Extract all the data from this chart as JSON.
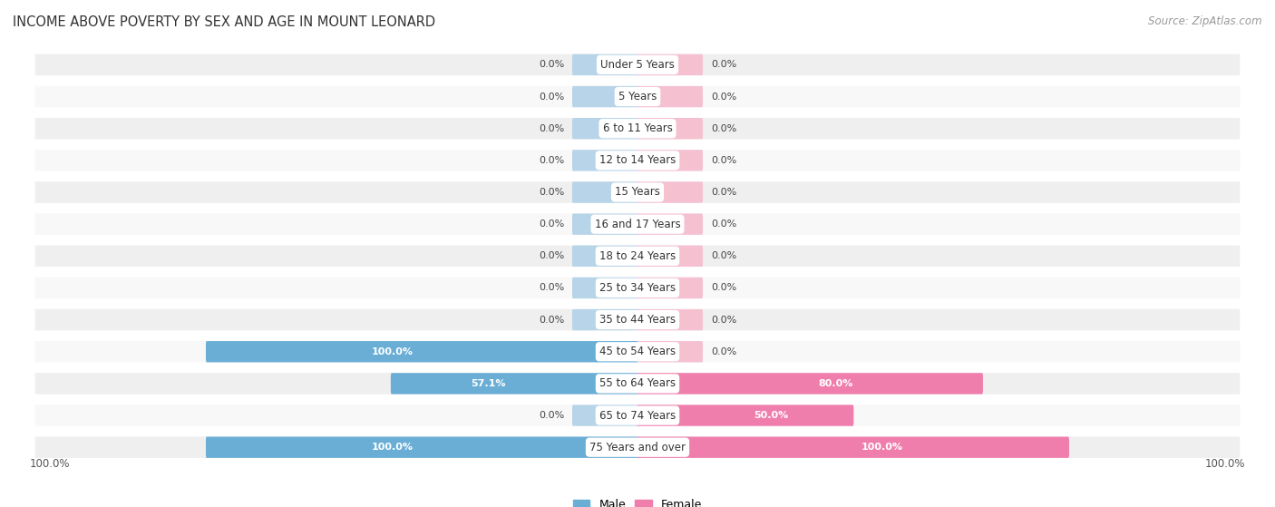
{
  "title": "INCOME ABOVE POVERTY BY SEX AND AGE IN MOUNT LEONARD",
  "source": "Source: ZipAtlas.com",
  "categories": [
    "Under 5 Years",
    "5 Years",
    "6 to 11 Years",
    "12 to 14 Years",
    "15 Years",
    "16 and 17 Years",
    "18 to 24 Years",
    "25 to 34 Years",
    "35 to 44 Years",
    "45 to 54 Years",
    "55 to 64 Years",
    "65 to 74 Years",
    "75 Years and over"
  ],
  "male": [
    0.0,
    0.0,
    0.0,
    0.0,
    0.0,
    0.0,
    0.0,
    0.0,
    0.0,
    100.0,
    57.1,
    0.0,
    100.0
  ],
  "female": [
    0.0,
    0.0,
    0.0,
    0.0,
    0.0,
    0.0,
    0.0,
    0.0,
    0.0,
    0.0,
    80.0,
    50.0,
    100.0
  ],
  "male_color": "#6aaed6",
  "female_color": "#f07ead",
  "male_color_light": "#b8d4e8",
  "female_color_light": "#f5c0d0",
  "bg_odd": "#efefef",
  "bg_even": "#f8f8f8",
  "label_color": "#444444",
  "value_color_dark": "#444444",
  "title_fontsize": 10.5,
  "source_fontsize": 8.5,
  "bar_fontsize": 8,
  "cat_fontsize": 8.5,
  "max_val": 100.0,
  "stub_val": 15.0
}
